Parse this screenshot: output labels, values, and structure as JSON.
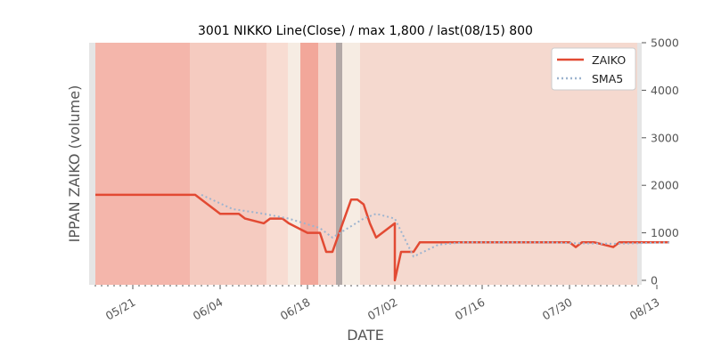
{
  "chart_data": {
    "type": "line",
    "title": "3001 NIKKO Line(Close) / max 1,800 / last(08/15) 800",
    "xlabel": "DATE",
    "ylabel": "IPPAN ZAIKO (volume)",
    "ylim": [
      0,
      5000
    ],
    "y_ticks": [
      "0",
      "1000",
      "2000",
      "3000",
      "4000",
      "5000"
    ],
    "x_tick_labels": [
      "05/21",
      "06/04",
      "06/18",
      "07/02",
      "07/16",
      "07/30",
      "08/13"
    ],
    "y_axis_side": "right",
    "legend_position": "top-right",
    "grid": false,
    "background_shading": true,
    "series": [
      {
        "name": "ZAIKO",
        "color": "#e24a33",
        "style": "solid",
        "points": [
          [
            "05/15",
            1800
          ],
          [
            "05/16",
            1800
          ],
          [
            "05/17",
            1800
          ],
          [
            "05/18",
            1800
          ],
          [
            "05/21",
            1800
          ],
          [
            "05/22",
            1800
          ],
          [
            "05/23",
            1800
          ],
          [
            "05/24",
            1800
          ],
          [
            "05/25",
            1800
          ],
          [
            "05/28",
            1800
          ],
          [
            "05/29",
            1800
          ],
          [
            "05/30",
            1800
          ],
          [
            "05/31",
            1800
          ],
          [
            "06/01",
            1700
          ],
          [
            "06/04",
            1400
          ],
          [
            "06/05",
            1400
          ],
          [
            "06/06",
            1400
          ],
          [
            "06/07",
            1400
          ],
          [
            "06/08",
            1300
          ],
          [
            "06/11",
            1200
          ],
          [
            "06/12",
            1300
          ],
          [
            "06/13",
            1300
          ],
          [
            "06/14",
            1300
          ],
          [
            "06/15",
            1200
          ],
          [
            "06/18",
            1000
          ],
          [
            "06/19",
            1000
          ],
          [
            "06/20",
            1000
          ],
          [
            "06/21",
            600
          ],
          [
            "06/22",
            600
          ],
          [
            "06/25",
            1700
          ],
          [
            "06/26",
            1700
          ],
          [
            "06/27",
            1600
          ],
          [
            "06/28",
            1200
          ],
          [
            "06/29",
            900
          ],
          [
            "07/02",
            1200
          ],
          [
            "07/02",
            0
          ],
          [
            "07/03",
            600
          ],
          [
            "07/04",
            600
          ],
          [
            "07/05",
            600
          ],
          [
            "07/06",
            800
          ],
          [
            "07/09",
            800
          ],
          [
            "07/10",
            800
          ],
          [
            "07/11",
            800
          ],
          [
            "07/12",
            800
          ],
          [
            "07/13",
            800
          ],
          [
            "07/16",
            800
          ],
          [
            "07/17",
            800
          ],
          [
            "07/18",
            800
          ],
          [
            "07/19",
            800
          ],
          [
            "07/20",
            800
          ],
          [
            "07/23",
            800
          ],
          [
            "07/24",
            800
          ],
          [
            "07/25",
            800
          ],
          [
            "07/26",
            800
          ],
          [
            "07/27",
            800
          ],
          [
            "07/30",
            800
          ],
          [
            "07/31",
            700
          ],
          [
            "08/01",
            800
          ],
          [
            "08/02",
            800
          ],
          [
            "08/03",
            800
          ],
          [
            "08/06",
            700
          ],
          [
            "08/07",
            800
          ],
          [
            "08/08",
            800
          ],
          [
            "08/09",
            800
          ],
          [
            "08/10",
            800
          ],
          [
            "08/13",
            800
          ],
          [
            "08/14",
            800
          ],
          [
            "08/15",
            800
          ]
        ]
      },
      {
        "name": "SMA5",
        "color": "#9db4cf",
        "style": "dotted",
        "points": [
          [
            "06/01",
            1800
          ],
          [
            "06/06",
            1500
          ],
          [
            "06/11",
            1400
          ],
          [
            "06/15",
            1300
          ],
          [
            "06/20",
            1100
          ],
          [
            "06/22",
            900
          ],
          [
            "06/27",
            1300
          ],
          [
            "06/29",
            1400
          ],
          [
            "07/02",
            1300
          ],
          [
            "07/05",
            500
          ],
          [
            "07/09",
            750
          ],
          [
            "07/13",
            800
          ],
          [
            "07/27",
            800
          ],
          [
            "07/31",
            780
          ],
          [
            "08/06",
            770
          ],
          [
            "08/15",
            800
          ]
        ]
      }
    ]
  }
}
